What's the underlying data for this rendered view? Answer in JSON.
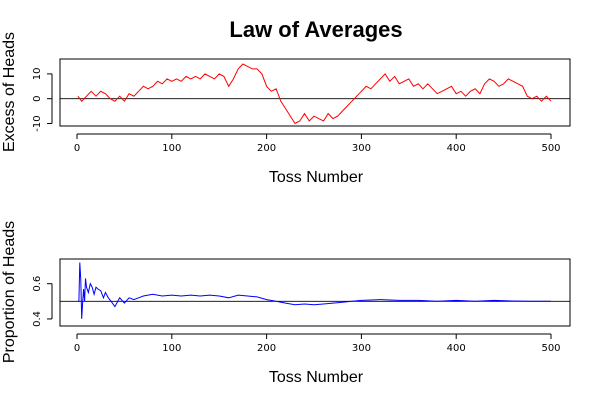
{
  "title": "Law of Averages",
  "chart_data": [
    {
      "type": "line",
      "xlabel": "Toss Number",
      "ylabel": "Excess of Heads",
      "xlim": [
        0,
        500
      ],
      "ylim": [
        -11,
        16
      ],
      "x_ticks": [
        0,
        100,
        200,
        300,
        400,
        500
      ],
      "y_ticks": [
        -10,
        0,
        10
      ],
      "reference_line": 0,
      "grid": false,
      "legend": "none",
      "color": "#ff0000",
      "series": [
        {
          "x": [
            1,
            5,
            10,
            15,
            20,
            25,
            30,
            35,
            40,
            45,
            50,
            55,
            60,
            65,
            70,
            75,
            80,
            85,
            90,
            95,
            100,
            105,
            110,
            115,
            120,
            125,
            130,
            135,
            140,
            145,
            150,
            155,
            160,
            165,
            170,
            175,
            180,
            185,
            190,
            195,
            200,
            205,
            210,
            215,
            220,
            225,
            230,
            235,
            240,
            245,
            250,
            255,
            260,
            265,
            270,
            275,
            280,
            285,
            290,
            295,
            300,
            305,
            310,
            315,
            320,
            325,
            330,
            335,
            340,
            345,
            350,
            355,
            360,
            365,
            370,
            375,
            380,
            385,
            390,
            395,
            400,
            405,
            410,
            415,
            420,
            425,
            430,
            435,
            440,
            445,
            450,
            455,
            460,
            465,
            470,
            475,
            480,
            485,
            490,
            495,
            500
          ],
          "values": [
            1,
            -1,
            1,
            3,
            1,
            3,
            2,
            0,
            -1,
            1,
            -1,
            2,
            1,
            3,
            5,
            4,
            5,
            7,
            6,
            8,
            7,
            8,
            7,
            9,
            8,
            9,
            8,
            10,
            9,
            8,
            10,
            9,
            5,
            8,
            12,
            14,
            13,
            12,
            12,
            10,
            5,
            3,
            4,
            -1,
            -4,
            -7,
            -10,
            -9,
            -6,
            -9,
            -7,
            -8,
            -9,
            -6,
            -8,
            -7,
            -5,
            -3,
            -1,
            1,
            3,
            5,
            4,
            6,
            8,
            10,
            7,
            9,
            6,
            7,
            8,
            5,
            6,
            4,
            6,
            4,
            2,
            3,
            4,
            5,
            2,
            3,
            1,
            3,
            4,
            2,
            6,
            8,
            7,
            5,
            6,
            8,
            7,
            6,
            5,
            1,
            0,
            1,
            -1,
            1,
            -1
          ]
        }
      ]
    },
    {
      "type": "line",
      "xlabel": "Toss Number",
      "ylabel": "Proportion of Heads",
      "xlim": [
        0,
        500
      ],
      "ylim": [
        0.36,
        0.74
      ],
      "x_ticks": [
        0,
        100,
        200,
        300,
        400,
        500
      ],
      "y_ticks": [
        0.4,
        0.6
      ],
      "y_tick_labels": [
        "0.4",
        "0.6"
      ],
      "reference_line": 0.5,
      "grid": false,
      "legend": "none",
      "color": "#0000ff",
      "series": [
        {
          "x": [
            1,
            2,
            3,
            4,
            5,
            6,
            7,
            8,
            9,
            10,
            12,
            14,
            16,
            18,
            20,
            22,
            25,
            28,
            30,
            33,
            36,
            40,
            45,
            50,
            55,
            60,
            65,
            70,
            80,
            90,
            100,
            110,
            120,
            130,
            140,
            150,
            160,
            170,
            180,
            190,
            200,
            210,
            220,
            230,
            240,
            250,
            260,
            270,
            280,
            290,
            300,
            320,
            340,
            360,
            380,
            400,
            420,
            440,
            460,
            480,
            500
          ],
          "values": [
            0.5,
            0.5,
            0.72,
            0.62,
            0.4,
            0.5,
            0.57,
            0.5,
            0.63,
            0.58,
            0.55,
            0.6,
            0.58,
            0.54,
            0.58,
            0.57,
            0.56,
            0.52,
            0.55,
            0.52,
            0.5,
            0.47,
            0.52,
            0.49,
            0.52,
            0.51,
            0.52,
            0.53,
            0.54,
            0.53,
            0.535,
            0.53,
            0.535,
            0.53,
            0.535,
            0.53,
            0.52,
            0.535,
            0.53,
            0.525,
            0.51,
            0.5,
            0.49,
            0.48,
            0.485,
            0.48,
            0.485,
            0.49,
            0.495,
            0.5,
            0.505,
            0.51,
            0.505,
            0.505,
            0.5,
            0.505,
            0.5,
            0.505,
            0.502,
            0.5,
            0.5
          ]
        }
      ]
    }
  ]
}
